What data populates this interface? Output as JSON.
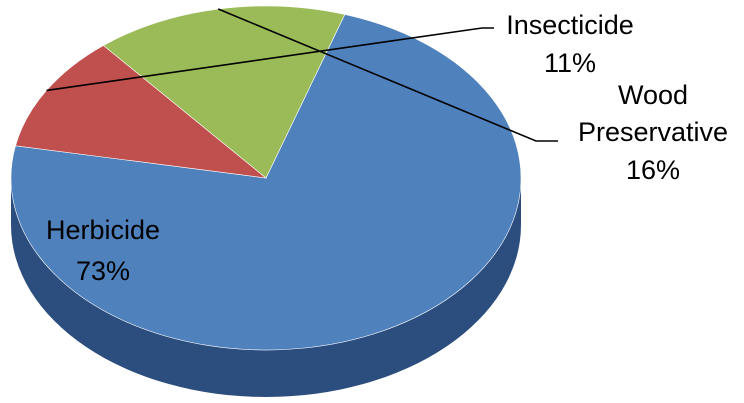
{
  "chart_data": {
    "type": "pie",
    "title": "",
    "slices": [
      {
        "label": "Herbicide",
        "value": 73,
        "value_label": "73%",
        "color": "#4F81BD",
        "side_color": "#2B4E7F"
      },
      {
        "label": "Insecticide",
        "value": 11,
        "value_label": "11%",
        "color": "#C0504D",
        "side_color": "#8E3A38"
      },
      {
        "label": "Wood Preservative",
        "label_lines": [
          "Wood",
          "Preservative"
        ],
        "value": 16,
        "value_label": "16%",
        "color": "#9BBB59",
        "side_color": "#6F8A3C"
      }
    ],
    "style": "3d"
  }
}
